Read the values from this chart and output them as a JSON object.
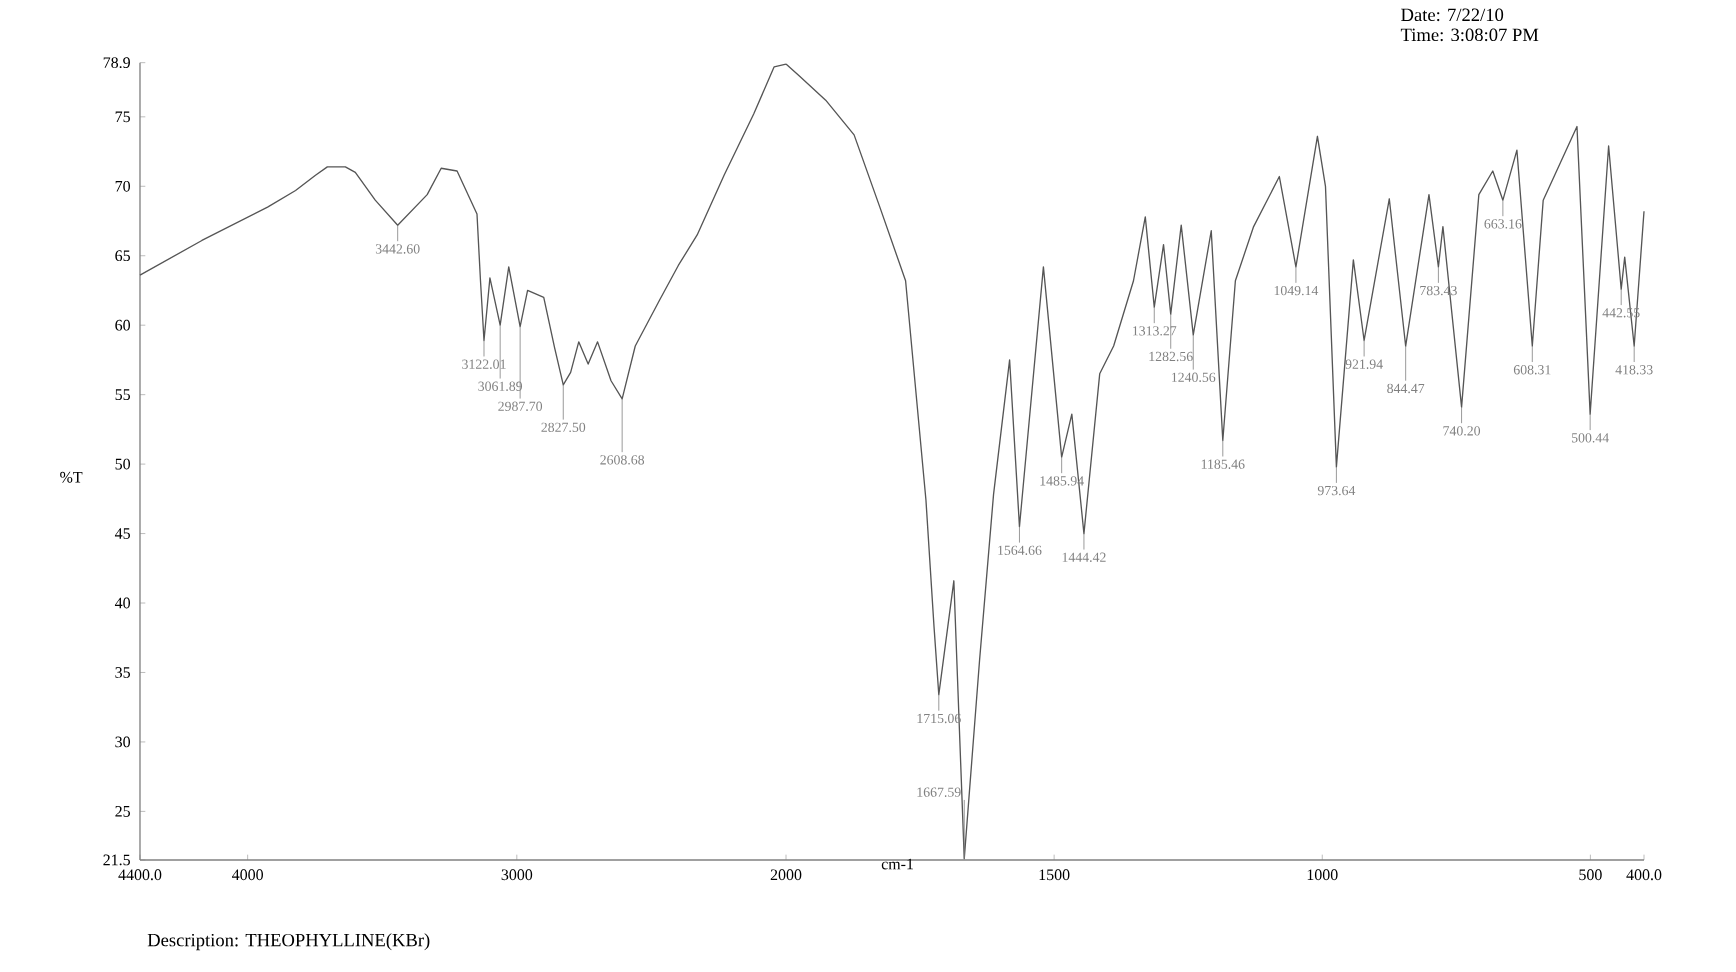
{
  "chart_data": [
    {
      "type": "line",
      "ylabel": "%T",
      "x": [
        4400,
        4170,
        3926,
        3822,
        3748,
        3704,
        3637,
        3600,
        3526,
        3442.6,
        3333,
        3281,
        3222,
        3148,
        3135,
        3122.01,
        3100,
        3061.89,
        3030,
        2987.7,
        2960,
        2900,
        2860,
        2827.5,
        2800,
        2770,
        2735,
        2700,
        2650,
        2608.68,
        2560,
        2470,
        2400,
        2330,
        2230,
        2120,
        2044,
        2000
      ],
      "series": [
        {
          "color": "#555555",
          "values": [
            63.6,
            66.1,
            68.5,
            69.7,
            70.8,
            71.4,
            71.4,
            71.0,
            69.0,
            67.2,
            69.4,
            71.3,
            71.1,
            68.0,
            63.2,
            58.9,
            63.4,
            60.0,
            64.2,
            59.9,
            62.5,
            62.0,
            58.4,
            55.7,
            56.6,
            58.8,
            57.2,
            58.8,
            56.0,
            54.7,
            58.5,
            61.8,
            64.3,
            66.5,
            70.8,
            75.2,
            78.6,
            78.8
          ]
        }
      ],
      "xlim": [
        4400,
        2000
      ],
      "ylim": [
        21.5,
        78.9
      ],
      "xticks": [
        {
          "value": 4400,
          "label": "4400.0"
        },
        4000,
        3000
      ],
      "yticks": [
        21.5,
        25,
        30,
        35,
        40,
        45,
        50,
        55,
        60,
        65,
        70,
        75,
        78.9
      ],
      "marker": "none",
      "line_style": "solid",
      "annotations": [
        "Description: THEOPHYLLINE(KBr)",
        {
          "text": "3442.60",
          "x": 3442.6,
          "y": 67.2
        },
        {
          "text": "3122.01",
          "x": 3122.01,
          "y": 58.9
        },
        {
          "text": "3061.89",
          "x": 3061.89,
          "y": 60.0
        },
        {
          "text": "2987.70",
          "x": 2987.7,
          "y": 59.9
        },
        {
          "text": "2827.50",
          "x": 2827.5,
          "y": 55.7
        },
        {
          "text": "2608.68",
          "x": 2608.68,
          "y": 54.7
        }
      ]
    },
    {
      "type": "line",
      "xlabel": "cm-1",
      "x": [
        2000,
        1974,
        1926,
        1873,
        1825,
        1777,
        1739,
        1724,
        1715.06,
        1687,
        1667.59,
        1639,
        1613,
        1583,
        1564.66,
        1520,
        1485.94,
        1467,
        1444.42,
        1415,
        1389,
        1352,
        1330,
        1313.27,
        1296,
        1282.56,
        1263,
        1240.56,
        1207,
        1185.46,
        1162,
        1128,
        1080,
        1049.14,
        1009,
        994,
        973.64,
        942,
        921.94,
        875,
        844.47,
        801,
        783.43,
        775,
        740.2,
        708,
        682,
        663.16,
        637,
        608.31,
        588,
        525,
        500.44,
        466,
        442.55,
        436,
        418.33,
        400
      ],
      "series": [
        {
          "color": "#555555",
          "values": [
            78.8,
            77.9,
            76.2,
            73.7,
            68.5,
            63.2,
            47.4,
            38.3,
            33.4,
            41.6,
            21.6,
            35.9,
            47.8,
            57.5,
            45.5,
            64.2,
            50.5,
            53.6,
            45.0,
            56.5,
            58.5,
            63.2,
            67.8,
            61.3,
            65.8,
            60.8,
            67.2,
            59.3,
            66.8,
            51.7,
            63.2,
            67.1,
            70.7,
            64.2,
            73.6,
            70.0,
            49.8,
            64.7,
            58.9,
            69.1,
            58.5,
            69.4,
            64.2,
            67.1,
            54.1,
            69.4,
            71.1,
            69.0,
            72.6,
            58.5,
            69.0,
            74.3,
            53.6,
            72.9,
            62.6,
            64.9,
            58.5,
            68.2
          ]
        }
      ],
      "xlim": [
        2000,
        400
      ],
      "ylim": [
        21.5,
        78.9
      ],
      "xticks": [
        2000,
        1500,
        1000,
        500,
        {
          "value": 400,
          "label": "400.0"
        }
      ],
      "tick_labels": "x",
      "marker": "none",
      "line_style": "solid",
      "annotations": [
        "Date: 7/22/10",
        "Time: 3:08:07 PM",
        {
          "text": "1715.06",
          "x": 1715.06,
          "y": 33.4
        },
        {
          "text": "1667.59",
          "x": 1667.59,
          "y": 21.6
        },
        {
          "text": "1564.66",
          "x": 1564.66,
          "y": 45.5
        },
        {
          "text": "1485.94",
          "x": 1485.94,
          "y": 50.5
        },
        {
          "text": "1444.42",
          "x": 1444.42,
          "y": 45.0
        },
        {
          "text": "1313.27",
          "x": 1313.27,
          "y": 61.3
        },
        {
          "text": "1282.56",
          "x": 1282.56,
          "y": 60.8
        },
        {
          "text": "1240.56",
          "x": 1240.56,
          "y": 59.3
        },
        {
          "text": "1185.46",
          "x": 1185.46,
          "y": 51.7
        },
        {
          "text": "1049.14",
          "x": 1049.14,
          "y": 64.2
        },
        {
          "text": "973.64",
          "x": 973.64,
          "y": 49.8
        },
        {
          "text": "921.94",
          "x": 921.94,
          "y": 58.9
        },
        {
          "text": "844.47",
          "x": 844.47,
          "y": 58.5
        },
        {
          "text": "783.43",
          "x": 783.43,
          "y": 64.2
        },
        {
          "text": "740.20",
          "x": 740.2,
          "y": 54.1
        },
        {
          "text": "663.16",
          "x": 663.16,
          "y": 69.0
        },
        {
          "text": "608.31",
          "x": 608.31,
          "y": 58.5
        },
        {
          "text": "500.44",
          "x": 500.44,
          "y": 53.6
        },
        {
          "text": "442.55",
          "x": 442.55,
          "y": 62.6
        },
        {
          "text": "418.33",
          "x": 418.33,
          "y": 58.5
        }
      ]
    }
  ]
}
